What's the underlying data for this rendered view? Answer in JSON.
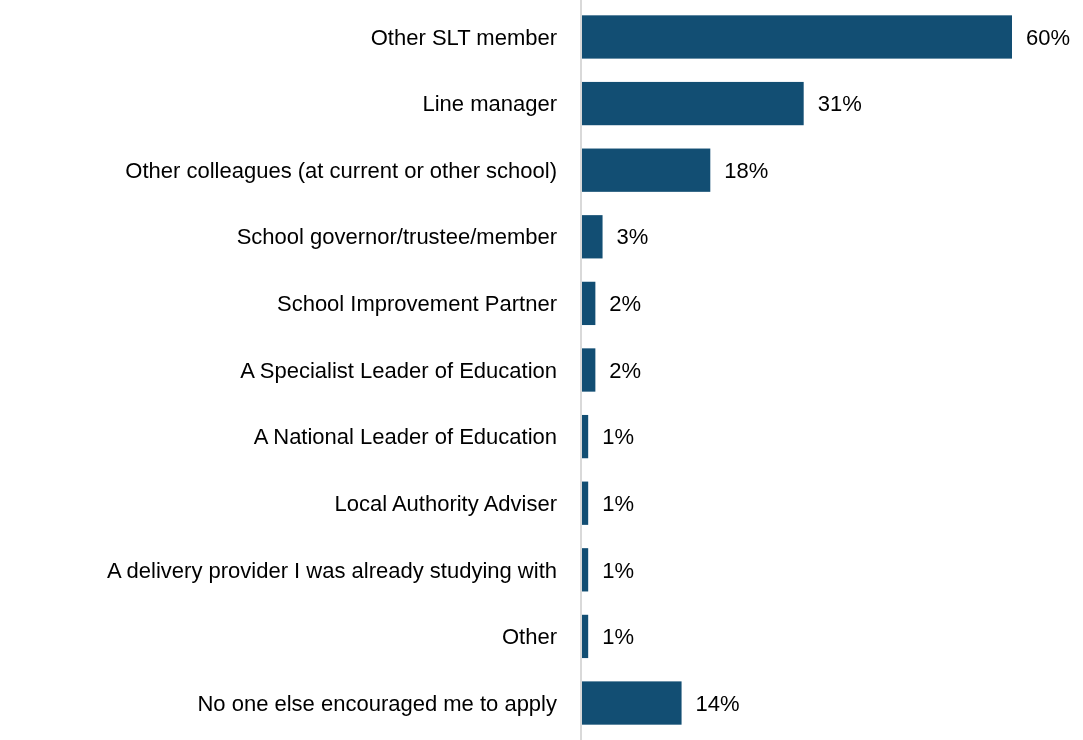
{
  "chart_data": {
    "type": "bar",
    "orientation": "horizontal",
    "categories": [
      "Other SLT member",
      "Line manager",
      "Other colleagues (at current or other school)",
      "School governor/trustee/member",
      "School Improvement Partner",
      "A Specialist Leader of Education",
      "A National Leader of Education",
      "Local Authority Adviser",
      "A delivery provider I was already studying with",
      "Other",
      "No one else encouraged me to apply"
    ],
    "values": [
      60,
      31,
      18,
      3,
      2,
      2,
      1,
      1,
      1,
      1,
      14
    ],
    "value_labels": [
      "60%",
      "31%",
      "18%",
      "3%",
      "2%",
      "2%",
      "1%",
      "1%",
      "1%",
      "1%",
      "14%"
    ],
    "color": "#124e73"
  }
}
